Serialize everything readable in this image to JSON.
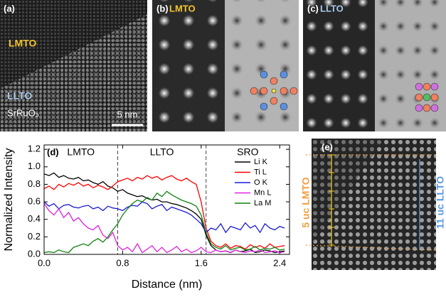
{
  "panels": {
    "a": {
      "label": "(a)",
      "top_label": "LMTO",
      "middle_label": "LLTO",
      "bottom_label": "SrRuO₃",
      "scale_bar": "5 nm"
    },
    "b": {
      "label": "(b)",
      "material": "LMTO"
    },
    "c": {
      "label": "(c)",
      "material": "LLTO"
    },
    "e": {
      "label": "(e)",
      "left_annotation": "5 uc LMTO",
      "right_annotation": "11 uc LLTO"
    }
  },
  "chart_data": {
    "type": "line",
    "panel_label": "(d)",
    "xlabel": "Distance (nm)",
    "ylabel": "Normalized Intensity",
    "regions": [
      "LMTO",
      "LLTO",
      "SRO"
    ],
    "region_boundaries": [
      0.75,
      1.65
    ],
    "xlim": [
      0,
      2.5
    ],
    "ylim": [
      0,
      1.25
    ],
    "xticks": [
      {
        "value": 0,
        "label": "0.0"
      },
      0.8,
      1.6,
      2.4
    ],
    "yticks": [
      {
        "value": 0,
        "label": "0.0"
      },
      0.2,
      0.4,
      0.6,
      0.8,
      {
        "value": 1,
        "label": "1.0"
      },
      1.2
    ],
    "x": [
      0,
      0.05,
      0.1,
      0.15,
      0.2,
      0.25,
      0.3,
      0.35,
      0.4,
      0.45,
      0.5,
      0.55,
      0.6,
      0.65,
      0.7,
      0.75,
      0.8,
      0.85,
      0.9,
      0.95,
      1,
      1.05,
      1.1,
      1.15,
      1.2,
      1.25,
      1.3,
      1.35,
      1.4,
      1.45,
      1.5,
      1.55,
      1.6,
      1.65,
      1.7,
      1.75,
      1.8,
      1.85,
      1.9,
      1.95,
      2,
      2.05,
      2.1,
      2.15,
      2.2,
      2.25,
      2.3,
      2.35,
      2.4,
      2.45
    ],
    "series": [
      {
        "name": "Li K",
        "color": "#000000",
        "values": [
          0.92,
          0.9,
          0.93,
          0.88,
          0.9,
          0.87,
          0.86,
          0.88,
          0.84,
          0.85,
          0.82,
          0.8,
          0.83,
          0.78,
          0.76,
          0.72,
          0.74,
          0.7,
          0.68,
          0.66,
          0.67,
          0.64,
          0.62,
          0.63,
          0.6,
          0.6,
          0.58,
          0.57,
          0.55,
          0.53,
          0.5,
          0.46,
          0.4,
          0.22,
          0.1,
          0.05,
          0.03,
          0.04,
          0.02,
          0.05,
          0.03,
          0.04,
          0.06,
          0.02,
          0.03,
          0.05,
          0.04,
          0.02,
          0.03,
          0.04
        ]
      },
      {
        "name": "Ti L",
        "color": "#ff0000",
        "values": [
          0.75,
          0.78,
          0.74,
          0.8,
          0.77,
          0.81,
          0.79,
          0.82,
          0.78,
          0.8,
          0.76,
          0.79,
          0.77,
          0.74,
          0.78,
          0.83,
          0.85,
          0.87,
          0.84,
          0.88,
          0.86,
          0.9,
          0.87,
          0.89,
          0.85,
          0.88,
          0.9,
          0.86,
          0.84,
          0.87,
          0.83,
          0.8,
          0.6,
          0.3,
          0.15,
          0.1,
          0.08,
          0.12,
          0.07,
          0.1,
          0.09,
          0.06,
          0.11,
          0.08,
          0.1,
          0.07,
          0.12,
          0.08,
          0.09,
          0.1
        ]
      },
      {
        "name": "O K",
        "color": "#1a1ad8",
        "values": [
          0.6,
          0.55,
          0.58,
          0.52,
          0.56,
          0.57,
          0.54,
          0.53,
          0.55,
          0.56,
          0.52,
          0.54,
          0.5,
          0.55,
          0.53,
          0.52,
          0.5,
          0.54,
          0.56,
          0.55,
          0.6,
          0.58,
          0.52,
          0.55,
          0.57,
          0.5,
          0.54,
          0.52,
          0.5,
          0.48,
          0.45,
          0.4,
          0.35,
          0.25,
          0.3,
          0.28,
          0.35,
          0.25,
          0.32,
          0.3,
          0.28,
          0.36,
          0.3,
          0.33,
          0.25,
          0.35,
          0.3,
          0.28,
          0.32,
          0.3
        ]
      },
      {
        "name": "Mn L",
        "color": "#e020e0",
        "values": [
          0.58,
          0.5,
          0.45,
          0.52,
          0.42,
          0.48,
          0.38,
          0.42,
          0.35,
          0.3,
          0.28,
          0.33,
          0.22,
          0.18,
          0.25,
          0.1,
          0.05,
          0.08,
          0.03,
          0.12,
          0.02,
          0.06,
          0.1,
          0.03,
          0.08,
          0.02,
          0.05,
          0.09,
          0.03,
          0.06,
          0.02,
          0.04,
          0.08,
          0.03,
          0.02,
          0.05,
          0.03,
          0.04,
          0.02,
          0.05,
          0.03,
          0.02,
          0.04,
          0.03,
          0.05,
          0.02,
          0.03,
          0.04,
          0.02,
          0.03
        ]
      },
      {
        "name": "La M",
        "color": "#108010",
        "values": [
          0.02,
          0.03,
          0.02,
          0.05,
          0.03,
          0.02,
          0.08,
          0.1,
          0.12,
          0.1,
          0.15,
          0.18,
          0.14,
          0.2,
          0.28,
          0.35,
          0.45,
          0.52,
          0.58,
          0.62,
          0.6,
          0.65,
          0.62,
          0.7,
          0.66,
          0.72,
          0.68,
          0.65,
          0.62,
          0.6,
          0.58,
          0.55,
          0.45,
          0.25,
          0.12,
          0.08,
          0.06,
          0.1,
          0.05,
          0.07,
          0.08,
          0.05,
          0.06,
          0.09,
          0.05,
          0.07,
          0.06,
          0.08,
          0.05,
          0.06
        ]
      }
    ]
  }
}
